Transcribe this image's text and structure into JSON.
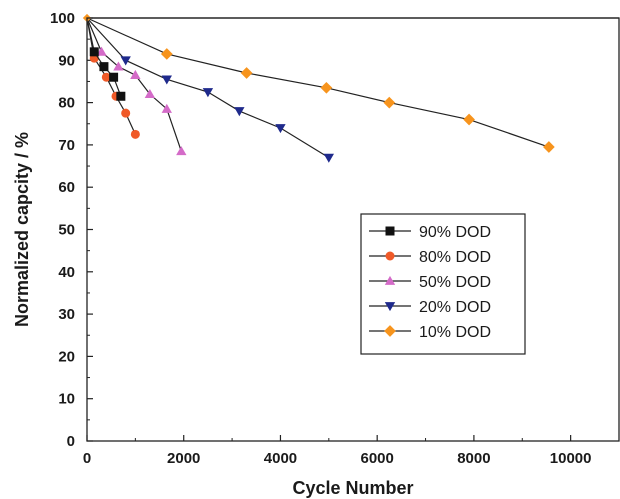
{
  "chart_data": {
    "type": "scatter",
    "title": "",
    "xlabel": "Cycle Number",
    "ylabel": "Normalized capcity / %",
    "xlim": [
      0,
      11000
    ],
    "ylim": [
      0,
      100
    ],
    "xticks": [
      0,
      2000,
      4000,
      6000,
      8000,
      10000
    ],
    "yticks": [
      0,
      10,
      20,
      30,
      40,
      50,
      60,
      70,
      80,
      90,
      100
    ],
    "grid": false,
    "legend_position": "center-right",
    "reference_line": {
      "y": 100
    },
    "series": [
      {
        "name": "90% DOD",
        "color": "#111111",
        "marker": "square",
        "x": [
          0,
          150,
          350,
          550,
          700
        ],
        "y": [
          100,
          92,
          88.5,
          86,
          81.5
        ]
      },
      {
        "name": "80% DOD",
        "color": "#f05a28",
        "marker": "circle",
        "x": [
          0,
          150,
          400,
          600,
          800,
          1000
        ],
        "y": [
          100,
          90.5,
          86,
          81.5,
          77.5,
          72.5
        ]
      },
      {
        "name": "50% DOD",
        "color": "#d46bc8",
        "marker": "triangle-up",
        "x": [
          0,
          300,
          650,
          1000,
          1300,
          1650,
          1950
        ],
        "y": [
          100,
          92,
          88.5,
          86.5,
          82,
          78.5,
          68.5
        ]
      },
      {
        "name": "20% DOD",
        "color": "#1f2a8c",
        "marker": "triangle-down",
        "x": [
          0,
          800,
          1650,
          2500,
          3150,
          4000,
          5000
        ],
        "y": [
          100,
          90,
          85.5,
          82.5,
          78,
          74,
          67
        ]
      },
      {
        "name": "10% DOD",
        "color": "#f7941d",
        "marker": "diamond",
        "x": [
          0,
          1650,
          3300,
          4950,
          6250,
          7900,
          9550
        ],
        "y": [
          100,
          91.5,
          87,
          83.5,
          80,
          76,
          69.5
        ]
      }
    ]
  }
}
